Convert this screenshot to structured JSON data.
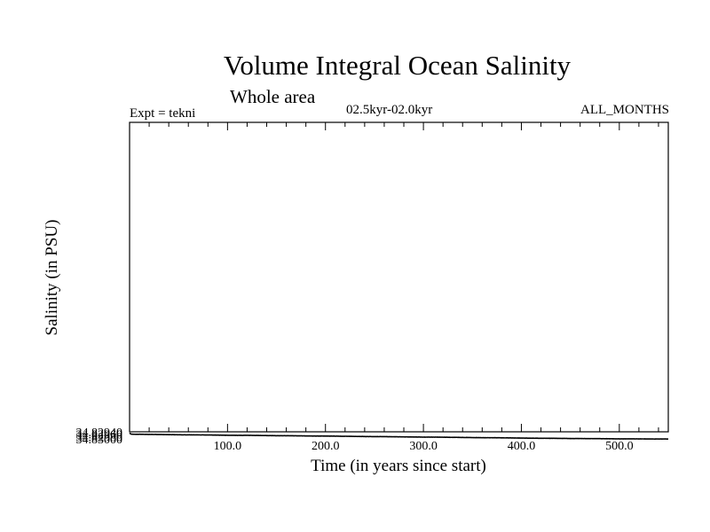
{
  "header": {
    "title": "Volume Integral Ocean Salinity",
    "subtitle": "Whole area",
    "experiment": "Expt = tekni",
    "period": "02.5kyr-02.0kyr",
    "months": "ALL_MONTHS"
  },
  "chart_data": {
    "type": "line",
    "title": "Volume Integral Ocean Salinity",
    "subtitle": "Whole area",
    "xlabel": "Time (in years since start)",
    "ylabel": "Salinity (in PSU)",
    "xlim": [
      0,
      550
    ],
    "ylim": [
      34.8294,
      34.8031
    ],
    "x_ticks": [
      100,
      200,
      300,
      400,
      500
    ],
    "x_tick_labels": [
      "100.0",
      "200.0",
      "300.0",
      "400.0",
      "500.0"
    ],
    "y_ticks": [
      34.8294,
      34.8296,
      34.8298,
      34.83
    ],
    "y_tick_labels": [
      "34.82940",
      "34.82960",
      "34.82980",
      "34.83000"
    ],
    "grid": false,
    "series": [
      {
        "name": "Salinity",
        "x": [
          0,
          1,
          2,
          5,
          10,
          20,
          30,
          40,
          50,
          60,
          70,
          80,
          90,
          100,
          110,
          120,
          130,
          140,
          150,
          160,
          170,
          180,
          190,
          200,
          210,
          220,
          230,
          240,
          250,
          260,
          270,
          280,
          290,
          300,
          310,
          320,
          330,
          340,
          350,
          360,
          370,
          380,
          390,
          400,
          410,
          420,
          430,
          440,
          450,
          460,
          470,
          480,
          490,
          500,
          510,
          520,
          530,
          540,
          550
        ],
        "values": [
          34.8295,
          34.82957,
          34.8296,
          34.82961,
          34.82961,
          34.82962,
          34.82963,
          34.82964,
          34.82965,
          34.82966,
          34.82966,
          34.82967,
          34.82968,
          34.82969,
          34.8297,
          34.8297,
          34.82971,
          34.82972,
          34.82973,
          34.82973,
          34.82974,
          34.82975,
          34.82976,
          34.82976,
          34.82977,
          34.82978,
          34.82979,
          34.8298,
          34.82981,
          34.82981,
          34.82982,
          34.82983,
          34.82984,
          34.82985,
          34.82985,
          34.82986,
          34.82987,
          34.82988,
          34.82989,
          34.8299,
          34.8299,
          34.82991,
          34.82992,
          34.82993,
          34.82994,
          34.82995,
          34.82995,
          34.82996,
          34.82997,
          34.82997,
          34.82998,
          34.82998,
          34.82999,
          34.83,
          34.83,
          34.83,
          34.83001,
          34.83001,
          34.83001
        ]
      }
    ]
  }
}
